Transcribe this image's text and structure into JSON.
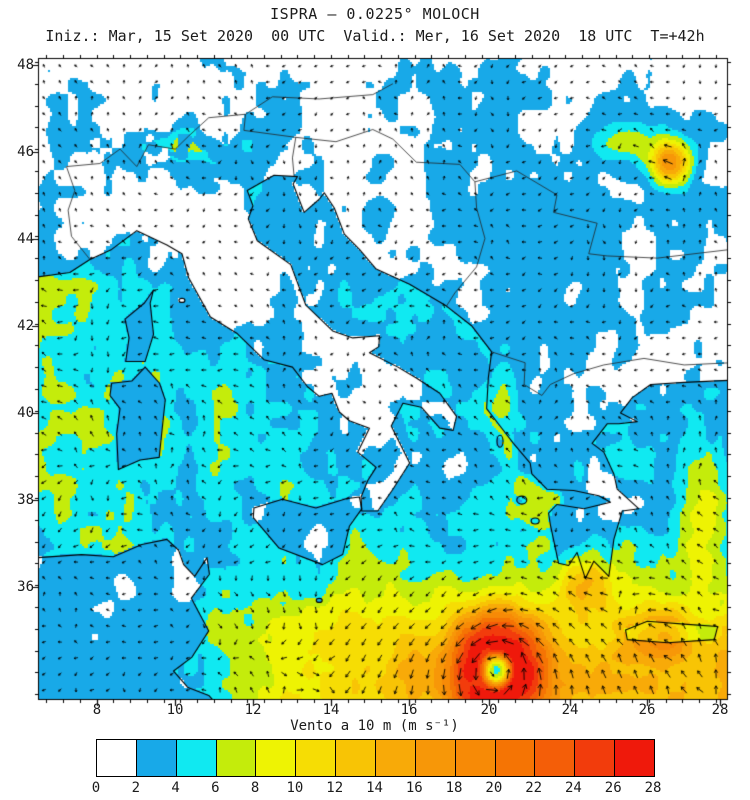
{
  "header": {
    "title": "ISPRA – 0.0225° MOLOCH",
    "subtitle": "Iniz.: Mar, 15 Set 2020  00 UTC  Valid.: Mer, 16 Set 2020  18 UTC  T=+42h"
  },
  "chart_data": {
    "type": "heatmap",
    "title": "ISPRA – 0.0225° MOLOCH",
    "model": "MOLOCH 0.0225°",
    "init_time": "Mar, 15 Set 2020 00 UTC",
    "valid_time": "Mer, 16 Set 2020 18 UTC",
    "lead_time": "T=+42h",
    "variable_label": "Vento a 10 m (m s⁻¹)",
    "units": "m s⁻¹",
    "x_axis": {
      "tick_values": [
        8,
        10,
        12,
        14,
        16,
        20,
        24,
        26,
        28
      ]
    },
    "y_axis": {
      "tick_values": [
        48,
        46,
        44,
        42,
        40,
        38,
        36
      ]
    },
    "colorbar": {
      "tick_values": [
        0,
        2,
        4,
        6,
        8,
        10,
        12,
        14,
        16,
        18,
        20,
        22,
        24,
        26,
        28
      ],
      "colors": [
        "#ffffff",
        "#18a9e8",
        "#10e9f1",
        "#c4ec0b",
        "#eef303",
        "#f6dd04",
        "#f8c405",
        "#f8aa08",
        "#f79708",
        "#f78a06",
        "#f57404",
        "#f45e08",
        "#f23c0c",
        "#ef190b"
      ]
    },
    "features": {
      "cyclone": {
        "approx_lon": 20,
        "approx_lat": 34.3,
        "note": "cyclonic vortex with calm eye and ring of winds above 26 m s⁻¹ over the southern Ionian Sea"
      }
    },
    "legend_position": "bottom",
    "grid": false
  }
}
